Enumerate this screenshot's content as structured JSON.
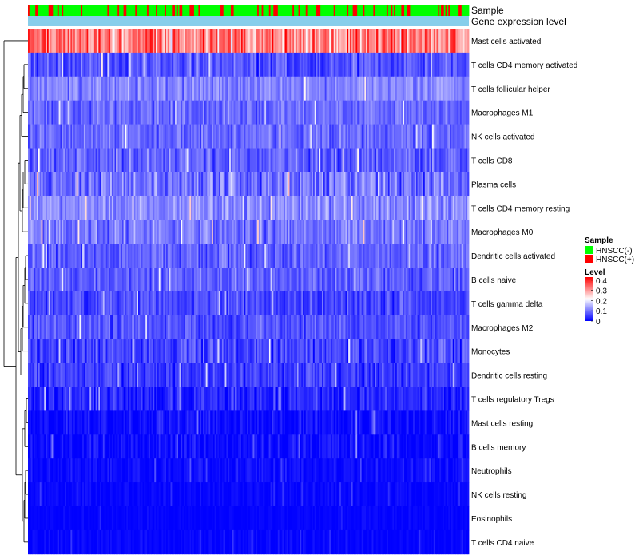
{
  "chart_data": {
    "type": "heatmap",
    "title": "",
    "columns_count": 300,
    "annotation_tracks": [
      {
        "name": "Sample",
        "legend_title": "Sample",
        "levels": [
          {
            "label": "HNSCC(-)",
            "color": "#00ff00"
          },
          {
            "label": "HNSCC(+)",
            "color": "#ff0000"
          }
        ],
        "positive_fraction": 0.22
      },
      {
        "name": "Gene expression level",
        "color": "#87ceeb"
      }
    ],
    "color_scale": {
      "title": "Level",
      "ticks": [
        "0.4",
        "0.3",
        "0.2",
        "0.1",
        "0"
      ],
      "tick_values": [
        0.4,
        0.3,
        0.2,
        0.1,
        0
      ],
      "min": 0,
      "max": 0.43,
      "colors": [
        "#0000ff",
        "#ffffff",
        "#ff0000"
      ]
    },
    "rows": [
      {
        "label": "Mast cells activated",
        "mean": 0.32,
        "spread": 0.1
      },
      {
        "label": "T cells CD4 memory activated",
        "mean": 0.07,
        "spread": 0.05
      },
      {
        "label": "T cells follicular helper",
        "mean": 0.11,
        "spread": 0.04
      },
      {
        "label": "Macrophages M1",
        "mean": 0.09,
        "spread": 0.04
      },
      {
        "label": "NK cells activated",
        "mean": 0.09,
        "spread": 0.04
      },
      {
        "label": "T cells CD8",
        "mean": 0.08,
        "spread": 0.05
      },
      {
        "label": "Plasma cells",
        "mean": 0.1,
        "spread": 0.06
      },
      {
        "label": "T cells CD4 memory resting",
        "mean": 0.12,
        "spread": 0.05
      },
      {
        "label": "Macrophages M0",
        "mean": 0.1,
        "spread": 0.05
      },
      {
        "label": "Dendritic cells activated",
        "mean": 0.08,
        "spread": 0.04
      },
      {
        "label": "B cells naive",
        "mean": 0.08,
        "spread": 0.04
      },
      {
        "label": "T cells gamma delta",
        "mean": 0.06,
        "spread": 0.04
      },
      {
        "label": "Macrophages M2",
        "mean": 0.07,
        "spread": 0.04
      },
      {
        "label": "Monocytes",
        "mean": 0.06,
        "spread": 0.05
      },
      {
        "label": "Dendritic cells resting",
        "mean": 0.05,
        "spread": 0.04
      },
      {
        "label": "T cells regulatory  Tregs",
        "mean": 0.03,
        "spread": 0.04
      },
      {
        "label": "Mast cells resting",
        "mean": 0.01,
        "spread": 0.03
      },
      {
        "label": "B cells memory",
        "mean": 0.01,
        "spread": 0.03
      },
      {
        "label": "Neutrophils",
        "mean": 0.01,
        "spread": 0.02
      },
      {
        "label": "NK cells resting",
        "mean": 0.005,
        "spread": 0.015
      },
      {
        "label": "Eosinophils",
        "mean": 0.003,
        "spread": 0.01
      },
      {
        "label": "T cells CD4 naive",
        "mean": 0.003,
        "spread": 0.015
      }
    ]
  }
}
